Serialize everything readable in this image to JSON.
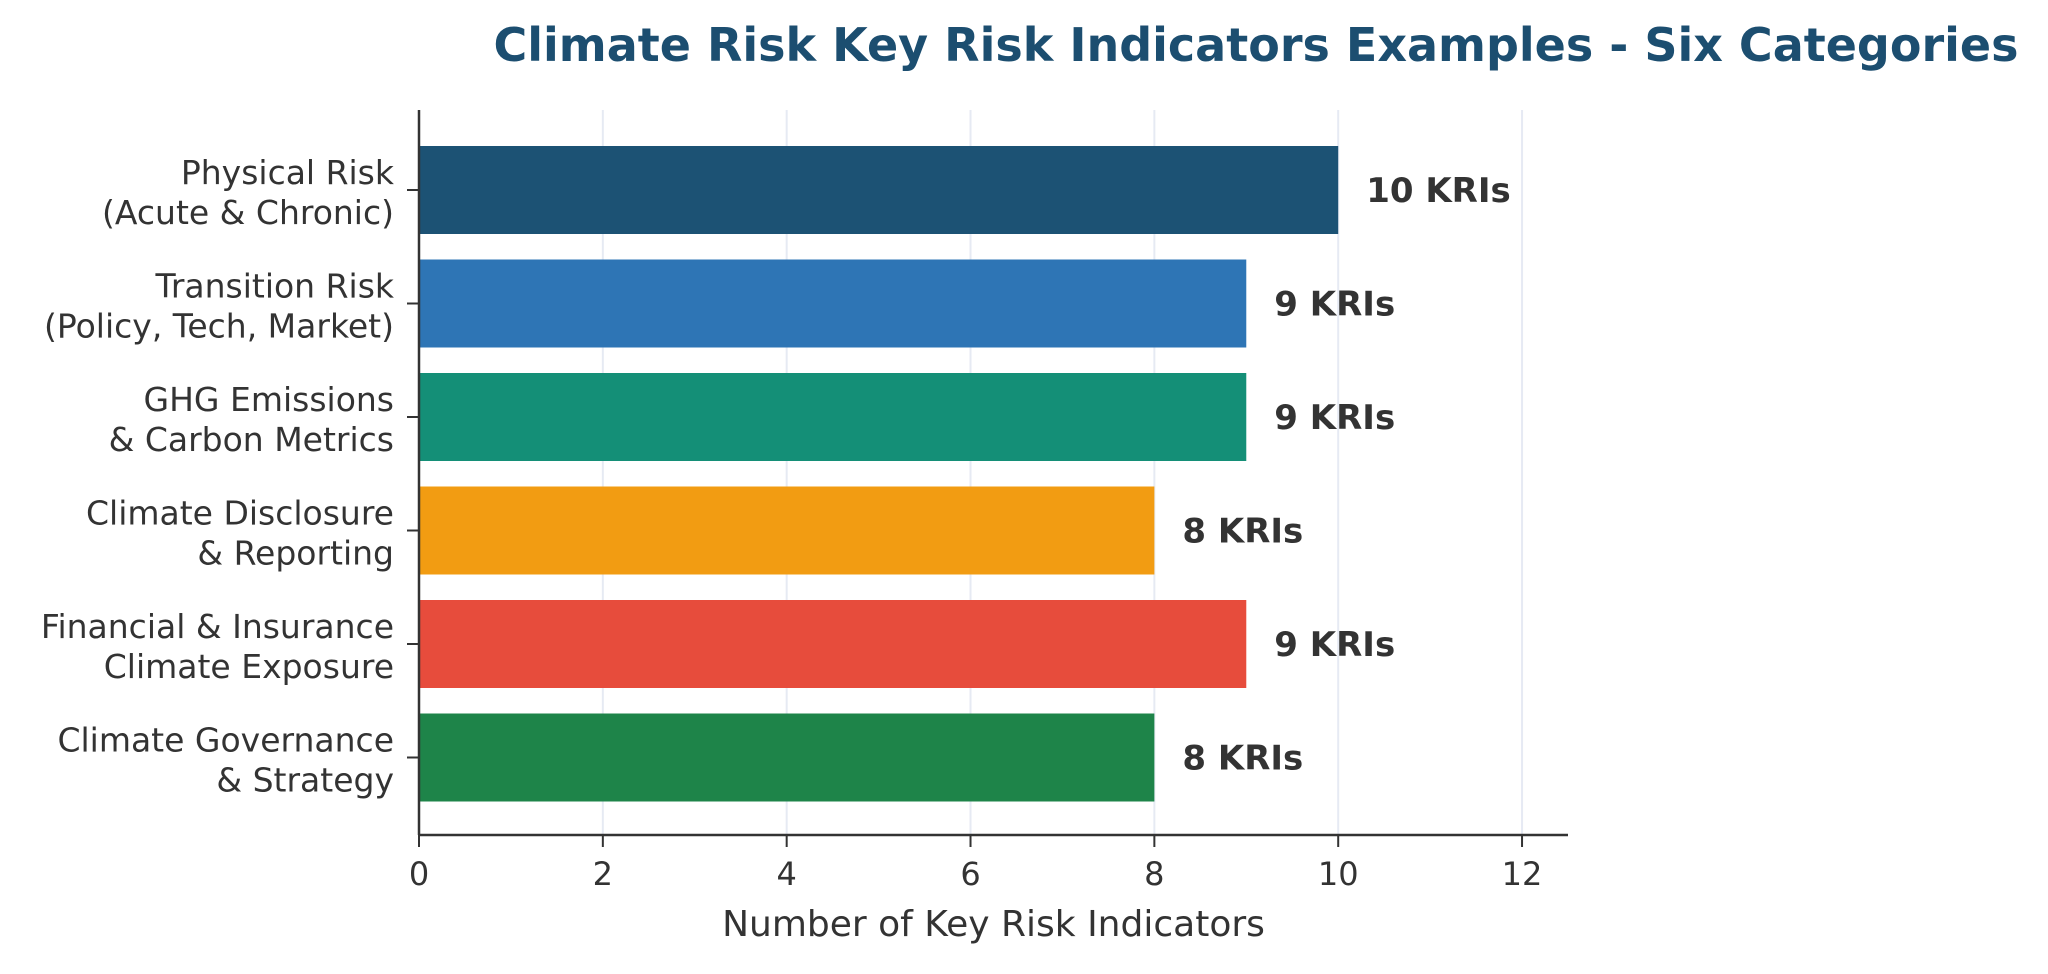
{
  "chart_data": {
    "type": "bar",
    "orientation": "horizontal",
    "title": "Climate Risk Key Risk Indicators Examples - Six Categories",
    "xlabel": "Number of Key Risk Indicators",
    "ylabel": "",
    "xlim": [
      0,
      12.5
    ],
    "xticks": [
      "0",
      "2",
      "4",
      "6",
      "8",
      "10",
      "12"
    ],
    "grid": "vertical",
    "legend": "none",
    "categories": [
      [
        "Physical Risk",
        "(Acute & Chronic)"
      ],
      [
        "Transition Risk",
        "(Policy, Tech, Market)"
      ],
      [
        "GHG Emissions",
        "& Carbon Metrics"
      ],
      [
        "Climate Disclosure",
        "& Reporting"
      ],
      [
        "Financial & Insurance",
        "Climate Exposure"
      ],
      [
        "Climate Governance",
        "& Strategy"
      ]
    ],
    "values": [
      10,
      9,
      9,
      8,
      9,
      8
    ],
    "data_labels": [
      "10 KRIs",
      "9 KRIs",
      "9 KRIs",
      "8 KRIs",
      "9 KRIs",
      "8 KRIs"
    ],
    "colors": [
      "#1c5274",
      "#2e75b5",
      "#148f77",
      "#f29c12",
      "#e74c3c",
      "#1e8449"
    ]
  },
  "style": {
    "title_color": "#1c4e70",
    "text_color": "#333333",
    "axis_color": "#333333",
    "grid_color": "#e6eaf3"
  }
}
